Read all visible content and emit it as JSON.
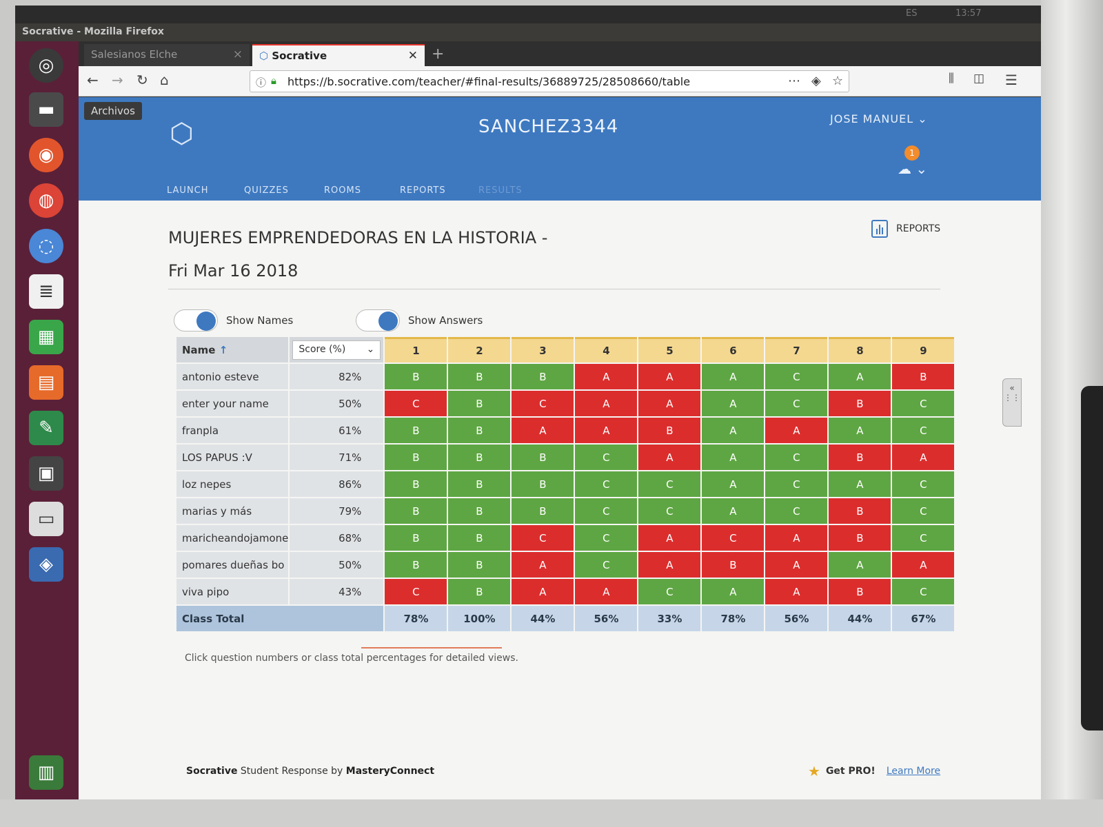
{
  "system": {
    "lang": "ES",
    "time": "13:57"
  },
  "window": {
    "title": "Socrative - Mozilla Firefox"
  },
  "tabs": [
    {
      "label": "Salesianos Elche",
      "active": false
    },
    {
      "label": "Socrative",
      "active": true
    }
  ],
  "url": "https://b.socrative.com/teacher/#final-results/36889725/28508660/table",
  "tooltip": "Archivos",
  "header": {
    "room": "SANCHEZ3344",
    "user": "JOSE MANUEL",
    "notification_count": "1",
    "nav": [
      "LAUNCH",
      "QUIZZES",
      "ROOMS",
      "REPORTS",
      "RESULTS"
    ]
  },
  "quiz": {
    "title": "MUJERES EMPRENDEDORAS EN LA HISTORIA -",
    "date": "Fri Mar 16 2018",
    "reports_label": "REPORTS"
  },
  "toggles": {
    "show_names": "Show Names",
    "show_answers": "Show Answers"
  },
  "table": {
    "name_header": "Name",
    "score_header": "Score (%)",
    "questions": [
      "1",
      "2",
      "3",
      "4",
      "5",
      "6",
      "7",
      "8",
      "9"
    ],
    "rows": [
      {
        "name": "antonio esteve",
        "score": "82%",
        "answers": [
          "B",
          "B",
          "B",
          "A",
          "A",
          "A",
          "C",
          "A",
          "B"
        ],
        "correct": [
          1,
          1,
          1,
          0,
          0,
          1,
          1,
          1,
          0
        ]
      },
      {
        "name": "enter your name",
        "score": "50%",
        "answers": [
          "C",
          "B",
          "C",
          "A",
          "A",
          "A",
          "C",
          "B",
          "C"
        ],
        "correct": [
          0,
          1,
          0,
          0,
          0,
          1,
          1,
          0,
          1
        ]
      },
      {
        "name": "franpla",
        "score": "61%",
        "answers": [
          "B",
          "B",
          "A",
          "A",
          "B",
          "A",
          "A",
          "A",
          "C"
        ],
        "correct": [
          1,
          1,
          0,
          0,
          0,
          1,
          0,
          1,
          1
        ]
      },
      {
        "name": "LOS PAPUS :V",
        "score": "71%",
        "answers": [
          "B",
          "B",
          "B",
          "C",
          "A",
          "A",
          "C",
          "B",
          "A"
        ],
        "correct": [
          1,
          1,
          1,
          1,
          0,
          1,
          1,
          0,
          0
        ]
      },
      {
        "name": "loz nepes",
        "score": "86%",
        "answers": [
          "B",
          "B",
          "B",
          "C",
          "C",
          "A",
          "C",
          "A",
          "C"
        ],
        "correct": [
          1,
          1,
          1,
          1,
          1,
          1,
          1,
          1,
          1
        ]
      },
      {
        "name": "marias y más",
        "score": "79%",
        "answers": [
          "B",
          "B",
          "B",
          "C",
          "C",
          "A",
          "C",
          "B",
          "C"
        ],
        "correct": [
          1,
          1,
          1,
          1,
          1,
          1,
          1,
          0,
          1
        ]
      },
      {
        "name": "maricheandojamonе",
        "score": "68%",
        "answers": [
          "B",
          "B",
          "C",
          "C",
          "A",
          "C",
          "A",
          "B",
          "C"
        ],
        "correct": [
          1,
          1,
          0,
          1,
          0,
          0,
          0,
          0,
          1
        ]
      },
      {
        "name": "pomares dueñas bo",
        "score": "50%",
        "answers": [
          "B",
          "B",
          "A",
          "C",
          "A",
          "B",
          "A",
          "A",
          "A"
        ],
        "correct": [
          1,
          1,
          0,
          1,
          0,
          0,
          0,
          1,
          0
        ]
      },
      {
        "name": "viva pipo",
        "score": "43%",
        "answers": [
          "C",
          "B",
          "A",
          "A",
          "C",
          "A",
          "A",
          "B",
          "C"
        ],
        "correct": [
          0,
          1,
          0,
          0,
          1,
          1,
          0,
          0,
          1
        ]
      }
    ],
    "class_total_label": "Class Total",
    "class_totals": [
      "78%",
      "100%",
      "44%",
      "56%",
      "33%",
      "78%",
      "56%",
      "44%",
      "67%"
    ]
  },
  "hint": "Click question numbers or class total percentages for detailed views.",
  "footer": {
    "brand": "Socrative",
    "middle": " Student Response by ",
    "company": "MasteryConnect",
    "get_pro": "Get PRO!",
    "learn_more": "Learn More"
  },
  "colors": {
    "correct": "#5ea643",
    "incorrect": "#dc2d2d",
    "header_blue": "#3e79c0"
  }
}
